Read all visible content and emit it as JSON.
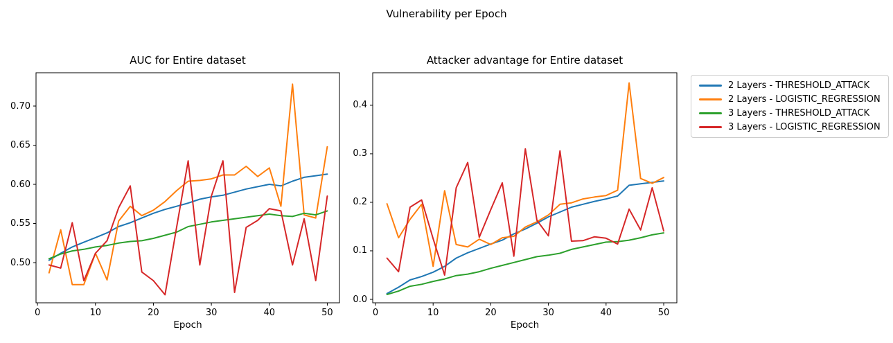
{
  "figure": {
    "suptitle": "Vulnerability per Epoch"
  },
  "legend": {
    "entries": [
      {
        "label": "2 Layers - THRESHOLD_ATTACK",
        "color": "#1f77b4"
      },
      {
        "label": "2 Layers - LOGISTIC_REGRESSION",
        "color": "#ff7f0e"
      },
      {
        "label": "3 Layers - THRESHOLD_ATTACK",
        "color": "#2ca02c"
      },
      {
        "label": "3 Layers - LOGISTIC_REGRESSION",
        "color": "#d62728"
      }
    ]
  },
  "chart_data": [
    {
      "type": "line",
      "title": "AUC for Entire dataset",
      "xlabel": "Epoch",
      "ylabel": "",
      "grid": false,
      "x": [
        2,
        4,
        6,
        8,
        10,
        12,
        14,
        16,
        18,
        20,
        22,
        24,
        26,
        28,
        30,
        32,
        34,
        36,
        38,
        40,
        42,
        44,
        46,
        48,
        50
      ],
      "xlim": [
        -0.25,
        52.1
      ],
      "ylim": [
        0.4487,
        0.7425
      ],
      "xticks": [
        0,
        10,
        20,
        30,
        40,
        50
      ],
      "xtick_labels": [
        "0",
        "10",
        "20",
        "30",
        "40",
        "50"
      ],
      "yticks": [
        0.5,
        0.55,
        0.6,
        0.65,
        0.7
      ],
      "ytick_labels": [
        "0.50",
        "0.55",
        "0.60",
        "0.65",
        "0.70"
      ],
      "series": [
        {
          "name": "2 Layers - THRESHOLD_ATTACK",
          "color": "#1f77b4",
          "values": [
            0.503,
            0.512,
            0.52,
            0.526,
            0.532,
            0.538,
            0.546,
            0.551,
            0.557,
            0.563,
            0.568,
            0.572,
            0.576,
            0.581,
            0.584,
            0.586,
            0.59,
            0.594,
            0.597,
            0.6,
            0.598,
            0.604,
            0.609,
            0.611,
            0.613
          ]
        },
        {
          "name": "2 Layers - LOGISTIC_REGRESSION",
          "color": "#ff7f0e",
          "values": [
            0.487,
            0.542,
            0.472,
            0.472,
            0.512,
            0.478,
            0.553,
            0.572,
            0.56,
            0.567,
            0.578,
            0.592,
            0.604,
            0.605,
            0.607,
            0.612,
            0.612,
            0.623,
            0.61,
            0.621,
            0.572,
            0.728,
            0.561,
            0.557,
            0.648
          ]
        },
        {
          "name": "3 Layers - THRESHOLD_ATTACK",
          "color": "#2ca02c",
          "values": [
            0.505,
            0.511,
            0.515,
            0.517,
            0.52,
            0.522,
            0.525,
            0.527,
            0.528,
            0.531,
            0.535,
            0.539,
            0.546,
            0.549,
            0.552,
            0.554,
            0.556,
            0.558,
            0.56,
            0.562,
            0.56,
            0.559,
            0.563,
            0.561,
            0.566
          ]
        },
        {
          "name": "3 Layers - LOGISTIC_REGRESSION",
          "color": "#d62728",
          "values": [
            0.497,
            0.493,
            0.551,
            0.477,
            0.512,
            0.528,
            0.57,
            0.598,
            0.488,
            0.477,
            0.459,
            0.545,
            0.63,
            0.497,
            0.585,
            0.63,
            0.462,
            0.545,
            0.554,
            0.569,
            0.566,
            0.497,
            0.556,
            0.477,
            0.585
          ]
        }
      ]
    },
    {
      "type": "line",
      "title": "Attacker advantage for Entire dataset",
      "xlabel": "Epoch",
      "ylabel": "",
      "grid": false,
      "x": [
        2,
        4,
        6,
        8,
        10,
        12,
        14,
        16,
        18,
        20,
        22,
        24,
        26,
        28,
        30,
        32,
        34,
        36,
        38,
        40,
        42,
        44,
        46,
        48,
        50
      ],
      "xlim": [
        -0.48,
        52.28
      ],
      "ylim": [
        -0.00714,
        0.467
      ],
      "xticks": [
        0,
        10,
        20,
        30,
        40,
        50
      ],
      "xtick_labels": [
        "0",
        "10",
        "20",
        "30",
        "40",
        "50"
      ],
      "yticks": [
        0.0,
        0.1,
        0.2,
        0.3,
        0.4
      ],
      "ytick_labels": [
        "0.0",
        "0.1",
        "0.2",
        "0.3",
        "0.4"
      ],
      "series": [
        {
          "name": "2 Layers - THRESHOLD_ATTACK",
          "color": "#1f77b4",
          "values": [
            0.012,
            0.025,
            0.04,
            0.047,
            0.056,
            0.068,
            0.085,
            0.096,
            0.105,
            0.114,
            0.122,
            0.135,
            0.145,
            0.157,
            0.17,
            0.18,
            0.19,
            0.196,
            0.202,
            0.207,
            0.213,
            0.235,
            0.238,
            0.241,
            0.244
          ]
        },
        {
          "name": "2 Layers - LOGISTIC_REGRESSION",
          "color": "#ff7f0e",
          "values": [
            0.197,
            0.127,
            0.165,
            0.196,
            0.068,
            0.224,
            0.113,
            0.108,
            0.124,
            0.113,
            0.127,
            0.13,
            0.149,
            0.16,
            0.174,
            0.196,
            0.199,
            0.207,
            0.211,
            0.214,
            0.225,
            0.446,
            0.249,
            0.239,
            0.251
          ]
        },
        {
          "name": "3 Layers - THRESHOLD_ATTACK",
          "color": "#2ca02c",
          "values": [
            0.01,
            0.017,
            0.027,
            0.031,
            0.037,
            0.042,
            0.049,
            0.052,
            0.057,
            0.064,
            0.07,
            0.076,
            0.082,
            0.088,
            0.091,
            0.095,
            0.103,
            0.108,
            0.113,
            0.118,
            0.119,
            0.122,
            0.127,
            0.133,
            0.137
          ]
        },
        {
          "name": "3 Layers - LOGISTIC_REGRESSION",
          "color": "#d62728",
          "values": [
            0.085,
            0.057,
            0.19,
            0.205,
            0.125,
            0.05,
            0.23,
            0.282,
            0.128,
            0.185,
            0.24,
            0.089,
            0.31,
            0.163,
            0.131,
            0.306,
            0.12,
            0.121,
            0.129,
            0.126,
            0.114,
            0.186,
            0.143,
            0.23,
            0.141
          ]
        }
      ]
    }
  ]
}
